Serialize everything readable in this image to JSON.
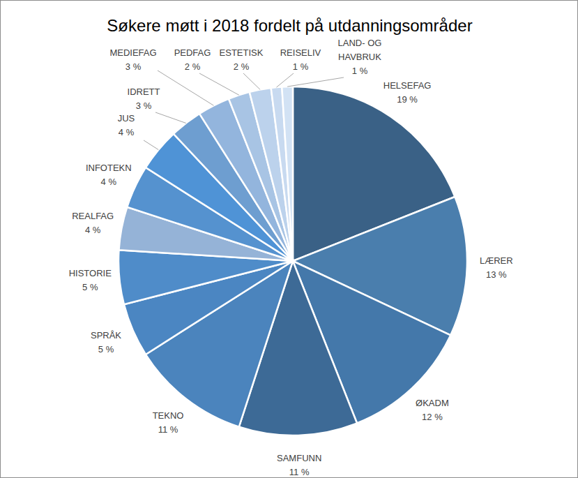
{
  "chart_data": {
    "type": "pie",
    "title": "Søkere møtt i 2018 fordelt på utdanningsområder",
    "categories": [
      "HELSEFAG",
      "LÆRER",
      "ØKADM",
      "SAMFUNN",
      "TEKNO",
      "SPRÅK",
      "HISTORIE",
      "REALFAG",
      "INFOTEKN",
      "JUS",
      "IDRETT",
      "MEDIEFAG",
      "PEDFAG",
      "ESTETISK",
      "REISELIV",
      "LAND- OG HAVBRUK"
    ],
    "values": [
      19,
      13,
      12,
      11,
      11,
      5,
      5,
      4,
      4,
      4,
      3,
      3,
      2,
      2,
      1,
      1
    ],
    "value_labels": [
      "19 %",
      "13 %",
      "12 %",
      "11 %",
      "11 %",
      "5 %",
      "5 %",
      "4 %",
      "4 %",
      "4 %",
      "3 %",
      "3 %",
      "2 %",
      "2 %",
      "1 %",
      "1 %"
    ],
    "colors": [
      "#3a6186",
      "#4a7ead",
      "#4478aa",
      "#3d6a96",
      "#4b84bd",
      "#4b86c2",
      "#4f8cc9",
      "#95b3d7",
      "#5592cf",
      "#4f93d6",
      "#6e9ed0",
      "#93b5dd",
      "#a8c4e4",
      "#bcd2ec",
      "#c8daf0",
      "#d2e2f4"
    ],
    "data_labels": true
  }
}
